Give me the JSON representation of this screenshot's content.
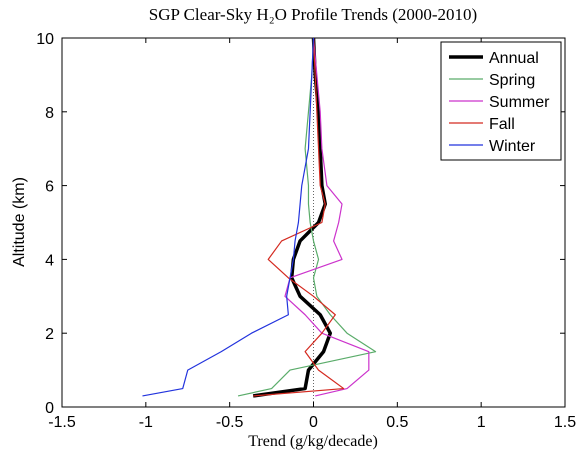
{
  "chart_data": {
    "type": "line",
    "title": "SGP Clear-Sky H₂O Profile Trends (2000-2010)",
    "x_label": "Trend (g/kg/decade)",
    "y_label": "Altitude (km)",
    "y": [
      0.3,
      0.5,
      1,
      1.5,
      2,
      2.5,
      3,
      3.5,
      4,
      4.5,
      5,
      5.5,
      6,
      7,
      8,
      9,
      10
    ],
    "series": [
      {
        "name": "Annual",
        "color": "#000000",
        "width": 3.5,
        "values": [
          -0.36,
          -0.05,
          -0.03,
          0.06,
          0.1,
          0.04,
          -0.08,
          -0.13,
          -0.12,
          -0.08,
          0.03,
          0.07,
          0.05,
          0.04,
          0.03,
          0.01,
          0.0
        ]
      },
      {
        "name": "Spring",
        "color": "#5aac6a",
        "width": 1.2,
        "values": [
          -0.45,
          -0.25,
          -0.14,
          0.37,
          0.2,
          0.1,
          0.02,
          0.0,
          0.03,
          0.0,
          -0.02,
          -0.03,
          -0.03,
          -0.05,
          -0.03,
          -0.01,
          0.0
        ]
      },
      {
        "name": "Summer",
        "color": "#cc33cc",
        "width": 1.2,
        "values": [
          0.01,
          0.2,
          0.33,
          0.33,
          0.05,
          -0.05,
          -0.17,
          -0.14,
          0.17,
          0.12,
          0.15,
          0.17,
          0.08,
          0.05,
          0.04,
          0.02,
          0.0
        ]
      },
      {
        "name": "Fall",
        "color": "#d42a20",
        "width": 1.2,
        "values": [
          -0.36,
          0.18,
          0.03,
          -0.05,
          0.05,
          0.13,
          0.0,
          -0.15,
          -0.27,
          -0.19,
          0.05,
          0.07,
          0.04,
          0.03,
          0.02,
          0.01,
          0.0
        ]
      },
      {
        "name": "Winter",
        "color": "#2233dd",
        "width": 1.2,
        "values": [
          -1.02,
          -0.78,
          -0.75,
          -0.55,
          -0.37,
          -0.15,
          -0.16,
          -0.14,
          -0.12,
          -0.11,
          -0.09,
          -0.08,
          -0.07,
          -0.03,
          -0.02,
          -0.01,
          0.0
        ]
      }
    ],
    "xlim": [
      -1.5,
      1.5
    ],
    "xticks": [
      -1.5,
      -1,
      -0.5,
      0,
      0.5,
      1,
      1.5
    ],
    "ylim": [
      0,
      10
    ],
    "yticks": [
      0,
      2,
      4,
      6,
      8,
      10
    ],
    "legend": "upper right"
  }
}
